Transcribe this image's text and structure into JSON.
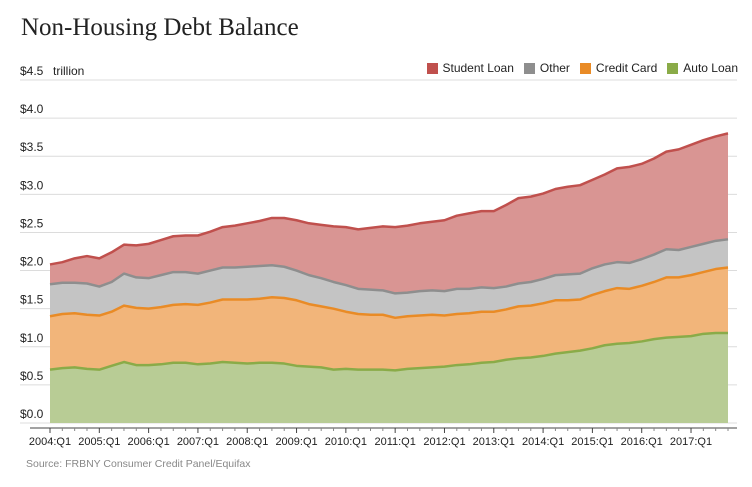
{
  "title": "Non-Housing Debt Balance",
  "source": "Source: FRBNY Consumer Credit Panel/Equifax",
  "chart_data": {
    "type": "area",
    "stacked": true,
    "title": "Non-Housing Debt Balance",
    "unit_label": "trillion",
    "ylim": [
      0,
      4.5
    ],
    "y_ticks": [
      "$0.0",
      "$0.5",
      "$1.0",
      "$1.5",
      "$2.0",
      "$2.5",
      "$3.0",
      "$3.5",
      "$4.0",
      "$4.5"
    ],
    "x_tick_labels": [
      "2004:Q1",
      "2005:Q1",
      "2006:Q1",
      "2007:Q1",
      "2008:Q1",
      "2009:Q1",
      "2010:Q1",
      "2011:Q1",
      "2012:Q1",
      "2013:Q1",
      "2014:Q1",
      "2015:Q1",
      "2016:Q1",
      "2017:Q1"
    ],
    "x_range": [
      "2004:Q1",
      "2017:Q4"
    ],
    "grid": true,
    "legend_position": "top-right",
    "series": [
      {
        "name": "Auto Loan",
        "color": "#8aab48",
        "fill": "#b8cc95",
        "values": [
          0.7,
          0.72,
          0.73,
          0.71,
          0.7,
          0.75,
          0.8,
          0.76,
          0.76,
          0.77,
          0.79,
          0.79,
          0.77,
          0.78,
          0.8,
          0.79,
          0.78,
          0.79,
          0.79,
          0.78,
          0.75,
          0.74,
          0.73,
          0.7,
          0.71,
          0.7,
          0.7,
          0.7,
          0.69,
          0.71,
          0.72,
          0.73,
          0.74,
          0.76,
          0.77,
          0.79,
          0.8,
          0.83,
          0.85,
          0.86,
          0.88,
          0.91,
          0.93,
          0.95,
          0.98,
          1.02,
          1.04,
          1.05,
          1.07,
          1.1,
          1.12,
          1.13,
          1.14,
          1.17,
          1.18,
          1.18
        ]
      },
      {
        "name": "Credit Card",
        "color": "#e98b26",
        "fill": "#f2b57a",
        "values": [
          0.7,
          0.71,
          0.71,
          0.71,
          0.71,
          0.71,
          0.74,
          0.75,
          0.74,
          0.75,
          0.76,
          0.77,
          0.78,
          0.8,
          0.82,
          0.83,
          0.84,
          0.84,
          0.86,
          0.86,
          0.86,
          0.82,
          0.8,
          0.8,
          0.75,
          0.73,
          0.72,
          0.72,
          0.69,
          0.69,
          0.69,
          0.69,
          0.67,
          0.67,
          0.67,
          0.67,
          0.66,
          0.66,
          0.68,
          0.68,
          0.69,
          0.7,
          0.68,
          0.67,
          0.7,
          0.71,
          0.73,
          0.71,
          0.73,
          0.75,
          0.79,
          0.78,
          0.8,
          0.81,
          0.84,
          0.86
        ]
      },
      {
        "name": "Other",
        "color": "#8e8e8e",
        "fill": "#c4c4c4",
        "values": [
          0.42,
          0.41,
          0.4,
          0.41,
          0.38,
          0.39,
          0.42,
          0.4,
          0.4,
          0.42,
          0.43,
          0.42,
          0.41,
          0.42,
          0.42,
          0.42,
          0.43,
          0.43,
          0.42,
          0.41,
          0.39,
          0.38,
          0.37,
          0.35,
          0.35,
          0.33,
          0.33,
          0.32,
          0.32,
          0.31,
          0.32,
          0.32,
          0.32,
          0.33,
          0.32,
          0.32,
          0.31,
          0.3,
          0.3,
          0.31,
          0.32,
          0.33,
          0.34,
          0.34,
          0.35,
          0.35,
          0.34,
          0.34,
          0.35,
          0.36,
          0.37,
          0.36,
          0.37,
          0.37,
          0.37,
          0.37
        ]
      },
      {
        "name": "Student Loan",
        "color": "#c0504d",
        "fill": "#d99593",
        "values": [
          0.26,
          0.27,
          0.32,
          0.36,
          0.37,
          0.39,
          0.38,
          0.42,
          0.45,
          0.46,
          0.47,
          0.48,
          0.5,
          0.51,
          0.53,
          0.55,
          0.57,
          0.59,
          0.62,
          0.64,
          0.66,
          0.68,
          0.7,
          0.73,
          0.76,
          0.78,
          0.81,
          0.84,
          0.87,
          0.88,
          0.89,
          0.9,
          0.93,
          0.96,
          0.99,
          1.0,
          1.01,
          1.07,
          1.12,
          1.12,
          1.12,
          1.13,
          1.15,
          1.16,
          1.16,
          1.18,
          1.23,
          1.26,
          1.25,
          1.26,
          1.28,
          1.32,
          1.34,
          1.36,
          1.37,
          1.39
        ]
      }
    ],
    "legend_order": [
      "Student Loan",
      "Other",
      "Credit Card",
      "Auto Loan"
    ]
  }
}
